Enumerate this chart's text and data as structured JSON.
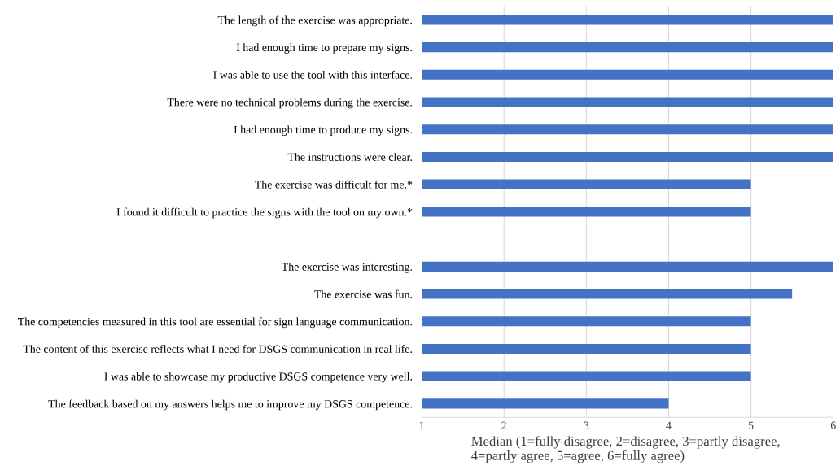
{
  "chart_data": {
    "type": "bar",
    "orientation": "horizontal",
    "categories": [
      "The length of the exercise was appropriate.",
      "I had enough time to prepare my signs.",
      "I was able to use the tool with this interface.",
      "There were no technical problems during the exercise.",
      "I had enough time to produce my signs.",
      "The instructions were clear.",
      "The exercise was difficult for me.*",
      "I found it difficult to practice the signs with the tool on my own.*",
      null,
      "The exercise was interesting.",
      "The exercise was fun.",
      "The competencies measured in this tool are essential for sign language communication.",
      "The content of this exercise reflects what I need for DSGS communication in real life.",
      "I was able to showcase my productive DSGS competence very well.",
      "The feedback based on my answers helps me to improve my DSGS competence."
    ],
    "values": [
      6,
      6,
      6,
      6,
      6,
      6,
      5,
      5,
      null,
      6,
      5.5,
      5,
      5,
      5,
      4
    ],
    "color": "#4472c4",
    "xlabel": "Median (1=fully disagree, 2=disagree, 3=partly disagree,\n4=partly agree, 5=agree, 6=fully agree)",
    "xlim": [
      1,
      6
    ],
    "xticks": [
      1,
      2,
      3,
      4,
      5,
      6
    ],
    "grid": "x",
    "legend": false
  }
}
